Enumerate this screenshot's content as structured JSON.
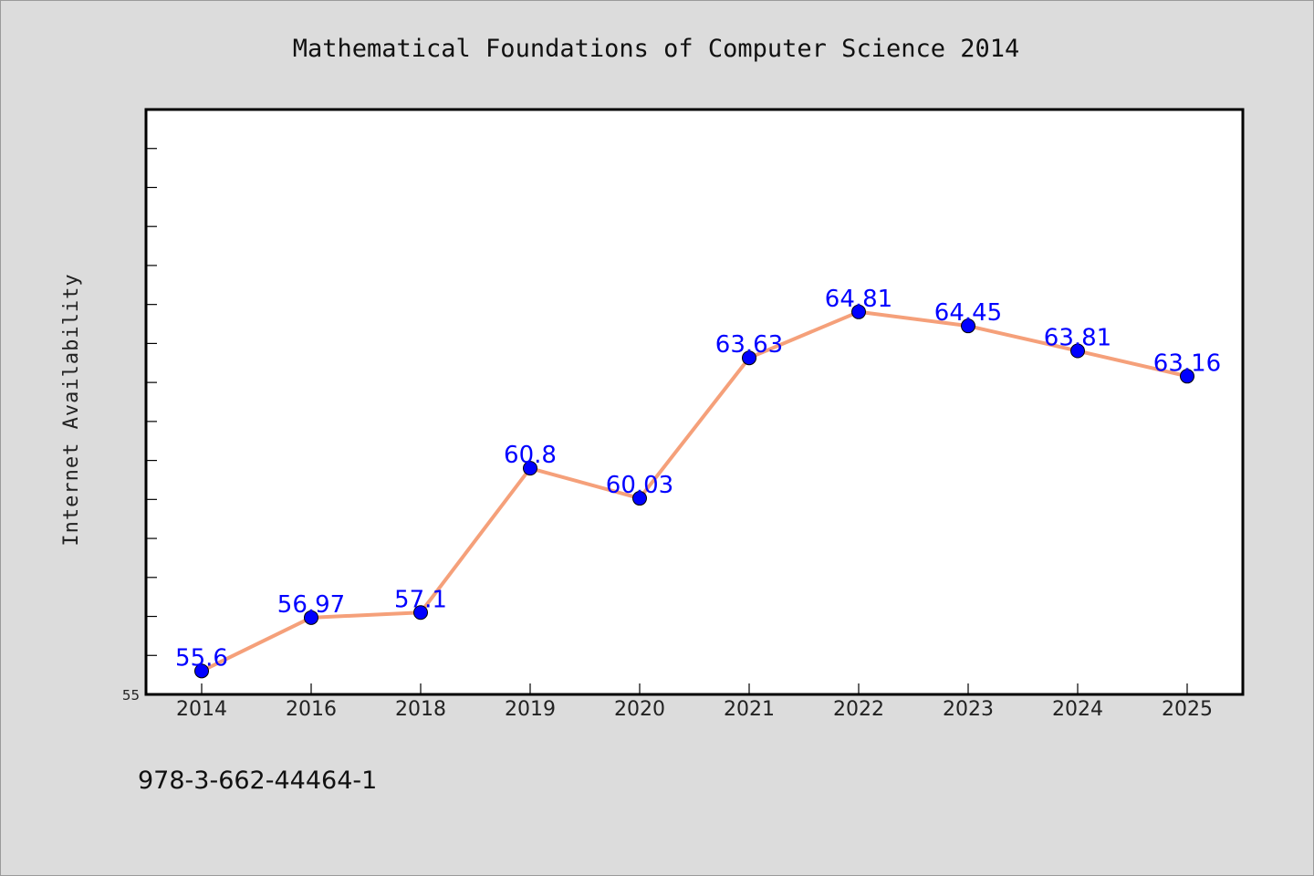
{
  "chart_data": {
    "type": "line",
    "title": "Mathematical Foundations of Computer Science 2014",
    "xlabel": "",
    "ylabel": "Internet Availability",
    "categories": [
      "2014",
      "2016",
      "2018",
      "2019",
      "2020",
      "2021",
      "2022",
      "2023",
      "2024",
      "2025"
    ],
    "series": [
      {
        "values": [
          55.6,
          56.97,
          57.1,
          60.8,
          60.03,
          63.63,
          64.81,
          64.45,
          63.81,
          63.16
        ],
        "labels": [
          "55.6",
          "56.97",
          "57.1",
          "60.8",
          "60.03",
          "63.63",
          "64.81",
          "64.45",
          "63.81",
          "63.16"
        ]
      }
    ],
    "ylim": [
      55,
      70
    ],
    "y_tick_labels": [
      "55"
    ],
    "grid": false,
    "line_color": "#f5a07a",
    "marker_color": "#0000ff",
    "label_color": "#0000ff"
  },
  "footer": {
    "text": "978-3-662-44464-1"
  }
}
